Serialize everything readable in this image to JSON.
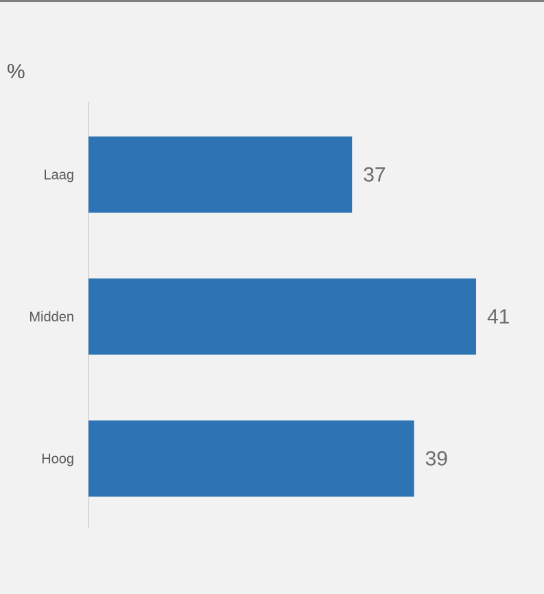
{
  "chart_data": {
    "type": "bar",
    "orientation": "horizontal",
    "unit": "%",
    "categories": [
      "Laag",
      "Midden",
      "Hoog"
    ],
    "values": [
      37,
      41,
      39
    ],
    "xlim": [
      28.5,
      41.5
    ],
    "title": "",
    "xlabel": "",
    "ylabel": "",
    "grid": false,
    "colors": {
      "bar": "#2e74b5",
      "axis": "#d9d9d9",
      "background": "#f2f2f2"
    }
  }
}
